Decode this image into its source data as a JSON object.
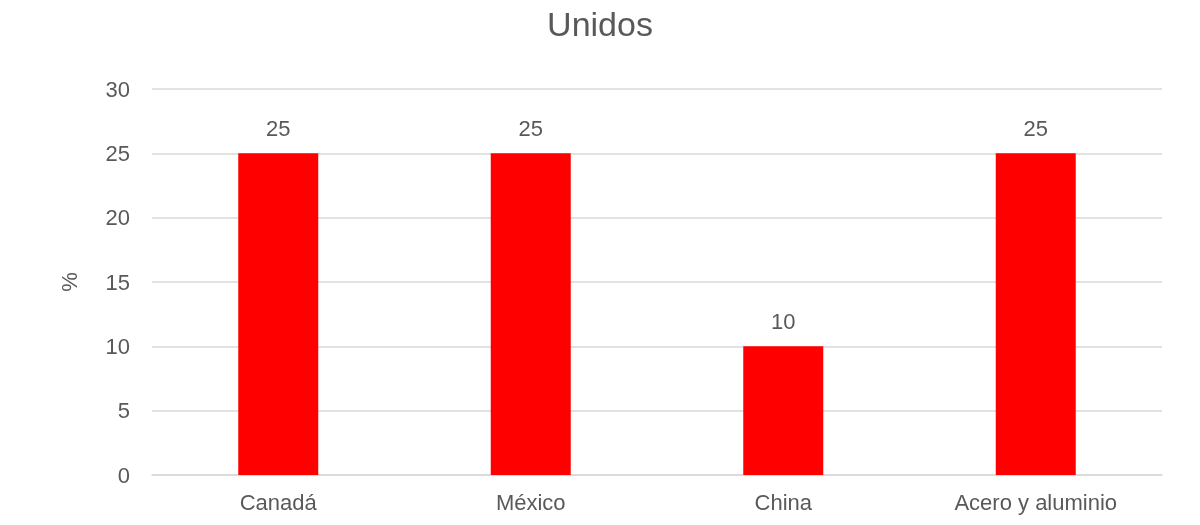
{
  "chart_data": {
    "type": "bar",
    "title": "Unidos",
    "ylabel": "%",
    "categories": [
      "Canadá",
      "México",
      "China",
      "Acero y aluminio"
    ],
    "values": [
      25,
      25,
      10,
      25
    ],
    "color": "#ff0000",
    "ylim": [
      0,
      30
    ],
    "yticks": [
      0,
      5,
      10,
      15,
      20,
      25,
      30
    ],
    "grid": "y",
    "data_labels": true
  }
}
